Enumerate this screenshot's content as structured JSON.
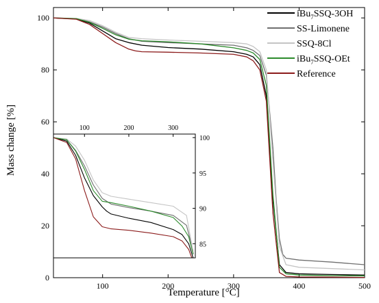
{
  "chart_data": [
    {
      "id": "main",
      "type": "line",
      "xlabel": "Temperature [°C]",
      "ylabel": "Mass change [%]",
      "xlim": [
        25,
        500
      ],
      "ylim": [
        0,
        104
      ],
      "x_ticks": [
        100,
        200,
        300,
        400,
        500
      ],
      "y_ticks": [
        0,
        20,
        40,
        60,
        80,
        100
      ],
      "legend_position": "top-right",
      "series": [
        {
          "name": "iBu7SSQ-3OH",
          "label_base": "iBu",
          "label_sub": "7",
          "label_rest": "SSQ-3OH",
          "color": "#000000",
          "x": [
            25,
            60,
            80,
            100,
            120,
            140,
            160,
            200,
            250,
            300,
            320,
            330,
            340,
            350,
            360,
            370,
            380,
            400,
            450,
            500
          ],
          "y": [
            100,
            99.6,
            98,
            95,
            92,
            90.5,
            89.5,
            88.6,
            88,
            87,
            86,
            85,
            82,
            70,
            30,
            5,
            2,
            1.5,
            1.2,
            1
          ]
        },
        {
          "name": "SS-Limonene",
          "color": "#6e6e6e",
          "x": [
            25,
            60,
            80,
            100,
            120,
            140,
            160,
            200,
            250,
            300,
            320,
            330,
            340,
            350,
            360,
            365,
            370,
            375,
            380,
            400,
            450,
            500
          ],
          "y": [
            100,
            99.7,
            98.5,
            96.5,
            94,
            92,
            91,
            90.5,
            90,
            89.5,
            88.5,
            87.5,
            85.5,
            78,
            50,
            30,
            15,
            9,
            7.5,
            6.8,
            6,
            5
          ]
        },
        {
          "name": "SSQ-8Cl",
          "color": "#c4c4c4",
          "x": [
            25,
            60,
            80,
            100,
            120,
            140,
            160,
            200,
            250,
            300,
            320,
            330,
            340,
            350,
            360,
            370,
            380,
            400,
            450,
            500
          ],
          "y": [
            100,
            99.8,
            99,
            97,
            94.5,
            92.5,
            92,
            91.5,
            91,
            90.5,
            90,
            89,
            87,
            80,
            45,
            12,
            5,
            4,
            3.5,
            3
          ]
        },
        {
          "name": "iBu7SSQ-OEt",
          "label_base": "iBu",
          "label_sub": "7",
          "label_rest": "SSQ-OEt",
          "color": "#2a8a2a",
          "x": [
            25,
            60,
            80,
            100,
            120,
            140,
            160,
            200,
            250,
            300,
            320,
            330,
            340,
            350,
            360,
            370,
            380,
            400,
            450,
            500
          ],
          "y": [
            100,
            99.7,
            98.3,
            96,
            93.5,
            91.8,
            91.2,
            90.8,
            90,
            88.5,
            87.5,
            86.5,
            84,
            74,
            32,
            4,
            1.5,
            1,
            0.8,
            0.7
          ]
        },
        {
          "name": "Reference",
          "color": "#8b1a1a",
          "x": [
            25,
            60,
            80,
            100,
            120,
            140,
            150,
            160,
            200,
            250,
            300,
            320,
            330,
            340,
            350,
            360,
            370,
            380,
            400,
            450,
            500
          ],
          "y": [
            100,
            99.5,
            97.5,
            94,
            90.5,
            88,
            87.3,
            87,
            86.8,
            86.5,
            86,
            85,
            83.5,
            80,
            68,
            25,
            2,
            0.5,
            0.3,
            0.2,
            0.1
          ]
        }
      ]
    },
    {
      "id": "inset",
      "type": "line",
      "xlim": [
        30,
        350
      ],
      "ylim": [
        83,
        100.5
      ],
      "x_ticks": [
        100,
        200,
        300
      ],
      "y_ticks": [
        85,
        90,
        95,
        100
      ],
      "x_axis_position": "top",
      "y_axis_position": "right",
      "series": [
        {
          "name": "iBu7SSQ-3OH",
          "color": "#000000",
          "x": [
            30,
            60,
            80,
            100,
            120,
            140,
            150,
            160,
            200,
            250,
            300,
            320,
            335,
            345
          ],
          "y": [
            100,
            99.5,
            97.5,
            94.3,
            91.8,
            90.2,
            89.6,
            89.2,
            88.6,
            88,
            87,
            86.3,
            85,
            83
          ]
        },
        {
          "name": "SS-Limonene",
          "color": "#6e6e6e",
          "x": [
            30,
            60,
            80,
            100,
            120,
            140,
            160,
            200,
            250,
            300,
            330,
            345
          ],
          "y": [
            100,
            99.7,
            98.2,
            96,
            93.3,
            91.4,
            90.6,
            90.1,
            89.6,
            89,
            87.6,
            84
          ]
        },
        {
          "name": "SSQ-8Cl",
          "color": "#c4c4c4",
          "x": [
            30,
            60,
            80,
            100,
            120,
            140,
            160,
            200,
            250,
            300,
            330,
            346
          ],
          "y": [
            100,
            99.8,
            98.8,
            96.8,
            94,
            92.2,
            91.7,
            91.3,
            90.8,
            90.3,
            89,
            83.5
          ]
        },
        {
          "name": "iBu7SSQ-OEt",
          "color": "#2a8a2a",
          "x": [
            30,
            60,
            80,
            100,
            120,
            140,
            160,
            200,
            250,
            300,
            320,
            335,
            345
          ],
          "y": [
            100,
            99.7,
            98.1,
            95.5,
            92.5,
            91,
            90.8,
            90.3,
            89.6,
            88.7,
            87.5,
            86,
            83.5
          ]
        },
        {
          "name": "Reference",
          "color": "#8b1a1a",
          "x": [
            30,
            60,
            80,
            100,
            120,
            140,
            160,
            200,
            250,
            300,
            320,
            335,
            342
          ],
          "y": [
            100,
            99.3,
            97,
            92.5,
            88.8,
            87.4,
            87.1,
            86.9,
            86.5,
            86,
            85.4,
            84.2,
            83
          ]
        }
      ]
    }
  ]
}
